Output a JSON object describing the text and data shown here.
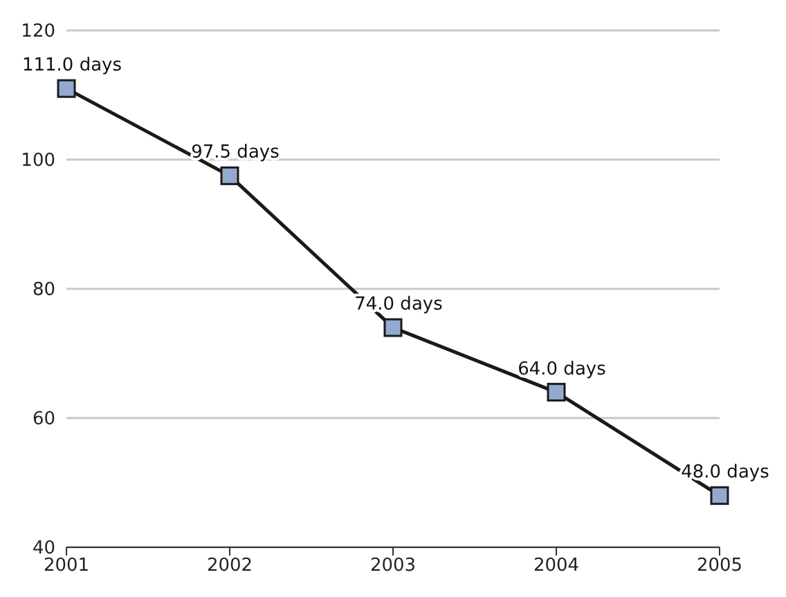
{
  "chart_data": {
    "type": "line",
    "categories": [
      "2001",
      "2002",
      "2003",
      "2004",
      "2005"
    ],
    "series": [
      {
        "color": "#1a1a1a",
        "values": [
          111.0,
          97.5,
          74.0,
          64.0,
          48.0
        ],
        "value_labels": [
          "111.0 days",
          "97.5 days",
          "74.0 days",
          "64.0 days",
          "48.0 days"
        ]
      }
    ],
    "ylim": [
      40,
      120
    ],
    "yticks": [
      40,
      60,
      80,
      100,
      120
    ],
    "grid": "y",
    "marker": "square",
    "line_style": "solid"
  }
}
